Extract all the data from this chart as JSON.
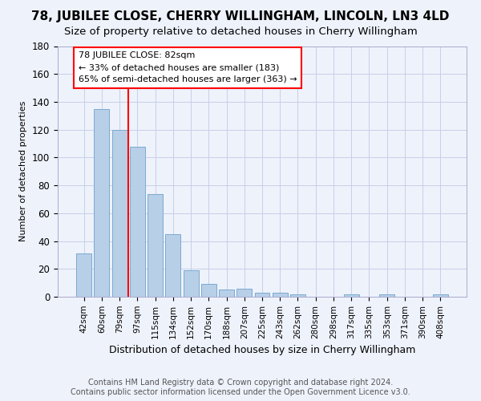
{
  "title": "78, JUBILEE CLOSE, CHERRY WILLINGHAM, LINCOLN, LN3 4LD",
  "subtitle": "Size of property relative to detached houses in Cherry Willingham",
  "xlabel_bottom": "Distribution of detached houses by size in Cherry Willingham",
  "ylabel": "Number of detached properties",
  "footer_line1": "Contains HM Land Registry data © Crown copyright and database right 2024.",
  "footer_line2": "Contains public sector information licensed under the Open Government Licence v3.0.",
  "bar_labels": [
    "42sqm",
    "60sqm",
    "79sqm",
    "97sqm",
    "115sqm",
    "134sqm",
    "152sqm",
    "170sqm",
    "188sqm",
    "207sqm",
    "225sqm",
    "243sqm",
    "262sqm",
    "280sqm",
    "298sqm",
    "317sqm",
    "335sqm",
    "353sqm",
    "371sqm",
    "390sqm",
    "408sqm"
  ],
  "bar_values": [
    31,
    135,
    120,
    108,
    74,
    45,
    19,
    9,
    5,
    6,
    3,
    3,
    2,
    0,
    0,
    2,
    0,
    2,
    0,
    0,
    2
  ],
  "bar_color": "#b8cfe8",
  "bar_edge_color": "#7aaad0",
  "background_color": "#eef2fb",
  "grid_color": "#c8cfe8",
  "vline_x": 2.5,
  "vline_color": "red",
  "annotation_line1": "78 JUBILEE CLOSE: 82sqm",
  "annotation_line2": "← 33% of detached houses are smaller (183)",
  "annotation_line3": "65% of semi-detached houses are larger (363) →",
  "annotation_box_color": "white",
  "annotation_box_edge": "red",
  "ylim": [
    0,
    180
  ],
  "yticks": [
    0,
    20,
    40,
    60,
    80,
    100,
    120,
    140,
    160,
    180
  ],
  "title_fontsize": 11,
  "subtitle_fontsize": 9.5,
  "annotation_fontsize": 8,
  "footer_fontsize": 7,
  "ylabel_fontsize": 8,
  "xlabel_fontsize": 9,
  "xtick_fontsize": 7.5,
  "ytick_fontsize": 8.5
}
